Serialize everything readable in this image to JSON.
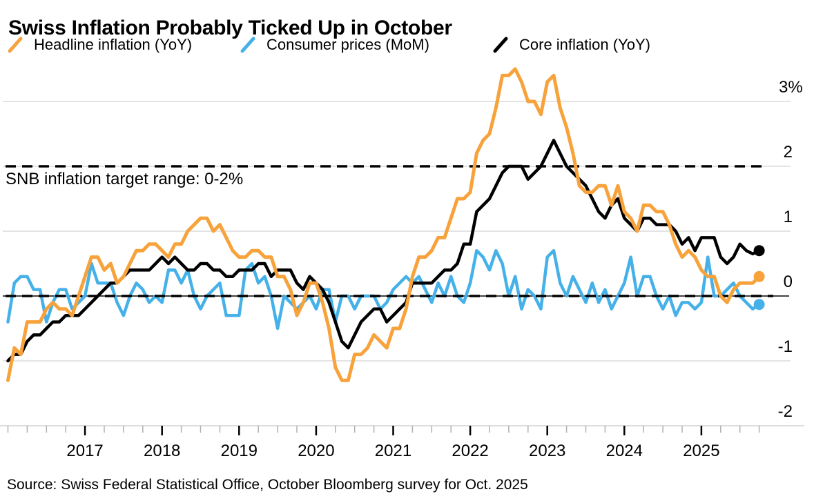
{
  "header": {
    "title": "Swiss Inflation Probably Ticked Up in October"
  },
  "legend": {
    "items": [
      {
        "id": "headline",
        "label": "Headline inflation (YoY)",
        "color": "#F7A23B"
      },
      {
        "id": "mom",
        "label": "Consumer prices (MoM)",
        "color": "#45B1E8"
      },
      {
        "id": "core",
        "label": "Core inflation (YoY)",
        "color": "#000000"
      }
    ]
  },
  "source": {
    "text": "Source: Swiss Federal Statistical Office, October Bloomberg survey for Oct. 2025"
  },
  "colors": {
    "background": "#FFFFFF",
    "gridline": "#DCDCDC",
    "axis_line": "#D0D0D0",
    "minor_tick": "#B0B0B0",
    "major_tick": "#000000",
    "zero_line": "#000000",
    "dashed_line": "#000000",
    "text": "#000000"
  },
  "chart_data": {
    "type": "line",
    "title": "Swiss Inflation Probably Ticked Up in October",
    "unit": "percent",
    "frequency": "monthly",
    "x_range": [
      "2016-01",
      "2025-10"
    ],
    "last_point_note": "Oct. 2025 value is October Bloomberg survey estimate (shown as dot)",
    "x_tick_labels": [
      "2017",
      "2018",
      "2019",
      "2020",
      "2021",
      "2022",
      "2023",
      "2024",
      "2025"
    ],
    "y_ticks": [
      {
        "value": 3,
        "label": "3%"
      },
      {
        "value": 2,
        "label": "2"
      },
      {
        "value": 1,
        "label": "1"
      },
      {
        "value": 0,
        "label": "0"
      },
      {
        "value": -1,
        "label": "-1"
      },
      {
        "value": -2,
        "label": "-2"
      }
    ],
    "ylim": [
      -2.4,
      3.6
    ],
    "grid": "horizontal",
    "legend_position": "top",
    "annotation": "SNB inflation target range: 0-2%",
    "target_range_dashed_lines": [
      2,
      0
    ],
    "series": [
      {
        "id": "headline",
        "name": "Headline inflation (YoY)",
        "color": "#F7A23B",
        "stroke_width": 5,
        "end_dot": true,
        "values": [
          -1.3,
          -0.8,
          -0.9,
          -0.4,
          -0.4,
          -0.4,
          -0.2,
          -0.1,
          -0.2,
          -0.2,
          -0.3,
          0.0,
          0.3,
          0.6,
          0.6,
          0.4,
          0.5,
          0.2,
          0.3,
          0.5,
          0.7,
          0.7,
          0.8,
          0.8,
          0.7,
          0.6,
          0.8,
          0.8,
          1.0,
          1.1,
          1.2,
          1.2,
          1.0,
          1.1,
          0.9,
          0.7,
          0.6,
          0.6,
          0.7,
          0.7,
          0.6,
          0.6,
          0.3,
          0.3,
          0.1,
          -0.3,
          -0.1,
          0.2,
          0.2,
          -0.1,
          -0.5,
          -1.1,
          -1.3,
          -1.3,
          -0.9,
          -0.9,
          -0.8,
          -0.6,
          -0.7,
          -0.8,
          -0.5,
          -0.5,
          -0.2,
          0.3,
          0.6,
          0.6,
          0.7,
          0.9,
          0.9,
          1.2,
          1.5,
          1.5,
          1.6,
          2.2,
          2.4,
          2.5,
          2.9,
          3.4,
          3.4,
          3.5,
          3.3,
          3.0,
          3.0,
          2.8,
          3.3,
          3.4,
          2.9,
          2.6,
          2.2,
          1.7,
          1.6,
          1.6,
          1.7,
          1.7,
          1.4,
          1.7,
          1.3,
          1.2,
          1.0,
          1.4,
          1.4,
          1.3,
          1.3,
          1.1,
          0.8,
          0.6,
          0.7,
          0.6,
          0.4,
          0.3,
          0.3,
          0.0,
          -0.1,
          0.1,
          0.2,
          0.2,
          0.2,
          0.3
        ]
      },
      {
        "id": "mom",
        "name": "Consumer prices (MoM)",
        "color": "#45B1E8",
        "stroke_width": 4.5,
        "end_dot": true,
        "values": [
          -0.4,
          0.2,
          0.3,
          0.3,
          0.1,
          0.1,
          -0.4,
          -0.1,
          0.1,
          0.1,
          -0.2,
          -0.1,
          0.0,
          0.5,
          0.2,
          0.2,
          0.2,
          -0.1,
          -0.3,
          0.0,
          0.2,
          0.1,
          -0.1,
          0.0,
          -0.1,
          0.4,
          0.4,
          0.2,
          0.4,
          0.0,
          -0.2,
          0.0,
          0.1,
          0.2,
          -0.3,
          -0.3,
          -0.3,
          0.4,
          0.5,
          0.2,
          0.3,
          0.0,
          -0.5,
          0.0,
          -0.1,
          -0.2,
          -0.1,
          0.0,
          -0.2,
          0.1,
          0.1,
          -0.4,
          0.0,
          0.0,
          -0.2,
          0.0,
          0.0,
          0.0,
          -0.2,
          -0.1,
          0.1,
          0.2,
          0.3,
          0.2,
          0.3,
          0.1,
          -0.1,
          0.2,
          0.0,
          0.3,
          0.0,
          -0.1,
          0.2,
          0.7,
          0.6,
          0.4,
          0.7,
          0.5,
          0.0,
          0.3,
          -0.2,
          0.1,
          0.0,
          -0.2,
          0.6,
          0.7,
          0.2,
          0.0,
          0.3,
          0.1,
          -0.1,
          0.2,
          -0.1,
          0.1,
          -0.2,
          0.0,
          0.2,
          0.6,
          0.0,
          0.3,
          0.3,
          0.0,
          -0.2,
          0.0,
          -0.3,
          -0.1,
          -0.1,
          -0.2,
          -0.1,
          0.6,
          0.0,
          0.0,
          0.1,
          0.2,
          0.0,
          -0.1,
          -0.2,
          -0.13
        ]
      },
      {
        "id": "core",
        "name": "Core inflation (YoY)",
        "color": "#000000",
        "stroke_width": 4.5,
        "end_dot": true,
        "values": [
          -1.0,
          -0.9,
          -0.9,
          -0.7,
          -0.6,
          -0.6,
          -0.5,
          -0.4,
          -0.4,
          -0.3,
          -0.3,
          -0.3,
          -0.2,
          -0.1,
          0.0,
          0.1,
          0.2,
          0.2,
          0.3,
          0.4,
          0.4,
          0.4,
          0.4,
          0.5,
          0.6,
          0.5,
          0.6,
          0.5,
          0.4,
          0.4,
          0.5,
          0.5,
          0.4,
          0.4,
          0.3,
          0.3,
          0.4,
          0.4,
          0.4,
          0.5,
          0.5,
          0.3,
          0.4,
          0.4,
          0.4,
          0.2,
          0.1,
          0.3,
          0.2,
          0.1,
          -0.1,
          -0.4,
          -0.7,
          -0.8,
          -0.6,
          -0.4,
          -0.3,
          -0.2,
          -0.2,
          -0.4,
          -0.3,
          -0.2,
          -0.1,
          0.2,
          0.2,
          0.2,
          0.2,
          0.3,
          0.4,
          0.4,
          0.5,
          0.8,
          0.8,
          1.3,
          1.4,
          1.5,
          1.7,
          1.9,
          2.0,
          2.0,
          2.0,
          1.8,
          1.9,
          2.0,
          2.2,
          2.4,
          2.2,
          2.0,
          1.9,
          1.8,
          1.7,
          1.5,
          1.3,
          1.2,
          1.4,
          1.5,
          1.2,
          1.1,
          1.0,
          1.2,
          1.2,
          1.1,
          1.1,
          1.1,
          1.0,
          0.8,
          0.9,
          0.7,
          0.9,
          0.9,
          0.9,
          0.6,
          0.5,
          0.6,
          0.8,
          0.7,
          0.65,
          0.7
        ]
      }
    ]
  }
}
